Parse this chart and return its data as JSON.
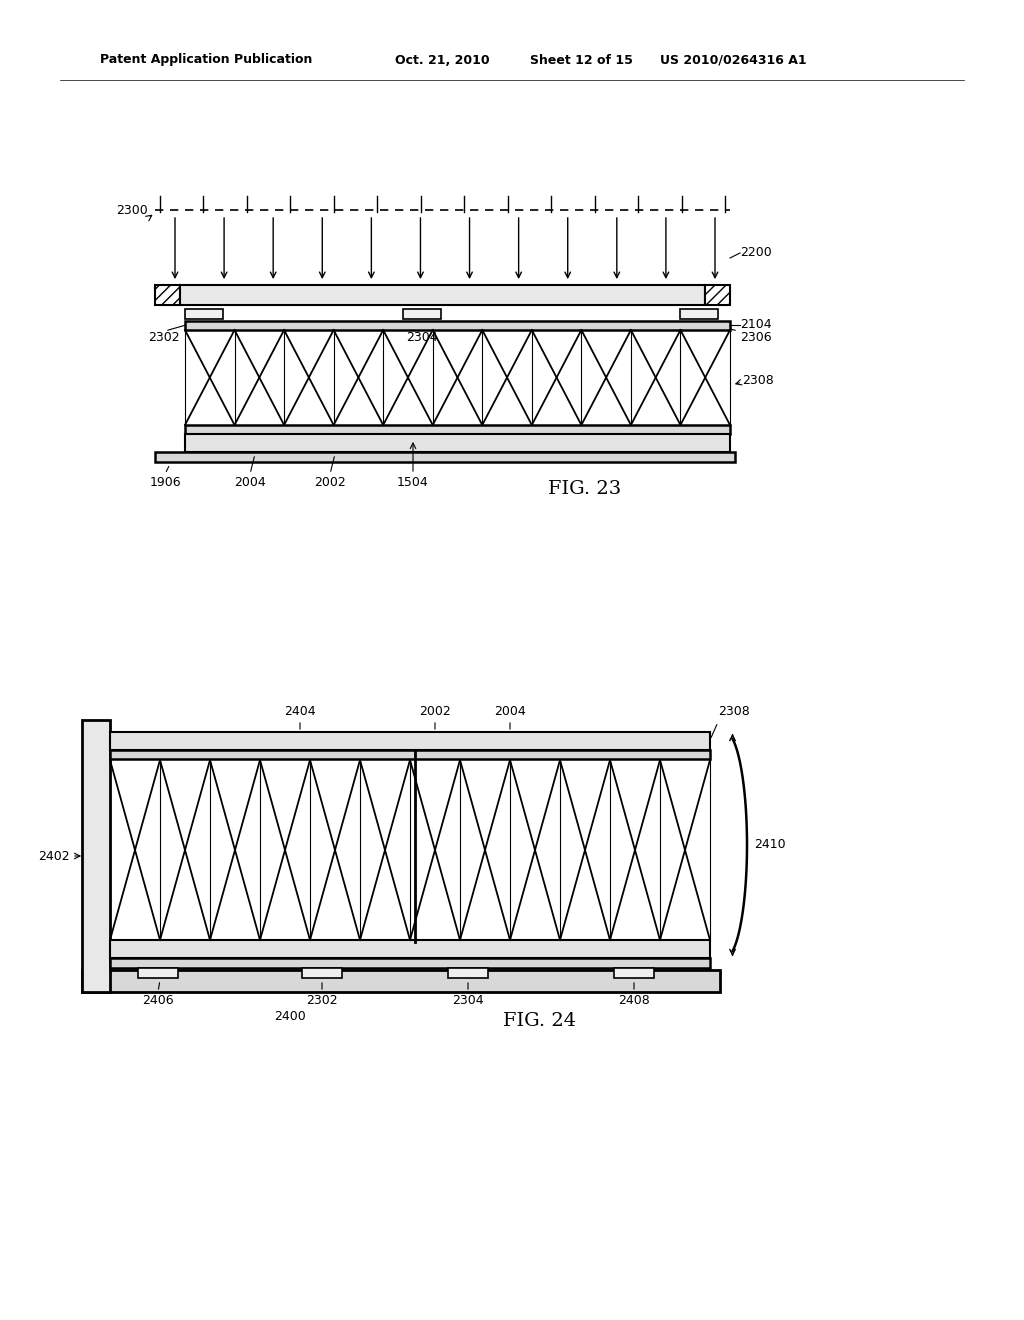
{
  "bg_color": "#ffffff",
  "header_line1": "Patent Application Publication",
  "header_line2": "Oct. 21, 2010",
  "header_line3": "Sheet 12 of 15",
  "header_line4": "US 2010/0264316 A1",
  "fig23_label": "FIG. 23",
  "fig24_label": "FIG. 24"
}
